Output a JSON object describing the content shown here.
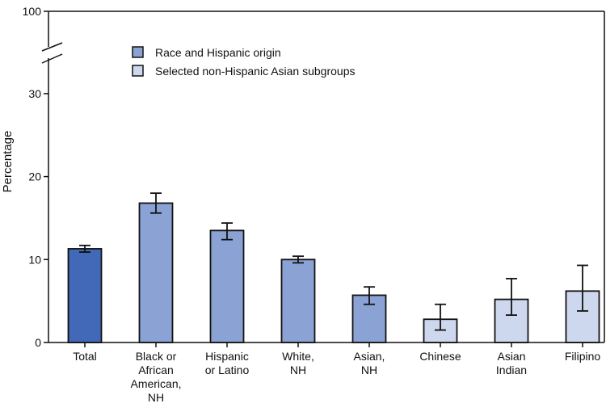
{
  "chart_data": {
    "type": "bar",
    "title": "",
    "xlabel": "",
    "ylabel": "Percentage",
    "ylim": [
      0,
      100
    ],
    "axis_break": [
      30,
      100
    ],
    "y_ticks": [
      0,
      10,
      20,
      30,
      100
    ],
    "grid": false,
    "legend_placement": "top-left",
    "legend": [
      {
        "label": "Race and Hispanic origin",
        "color": "#8aa2d4"
      },
      {
        "label": "Selected non-Hispanic Asian subgroups",
        "color": "#cdd7ee"
      }
    ],
    "categories": [
      [
        "Total"
      ],
      [
        "Black or",
        "African",
        "American,",
        "NH"
      ],
      [
        "Hispanic",
        "or Latino"
      ],
      [
        "White,",
        "NH"
      ],
      [
        "Asian,",
        "NH"
      ],
      [
        "Chinese"
      ],
      [
        "Asian",
        "Indian"
      ],
      [
        "Filipino"
      ]
    ],
    "values": [
      11.3,
      16.8,
      13.5,
      10.0,
      5.7,
      2.8,
      5.2,
      6.2
    ],
    "ci_lower": [
      10.9,
      15.6,
      12.4,
      9.6,
      4.6,
      1.5,
      3.3,
      3.8
    ],
    "ci_upper": [
      11.7,
      18.0,
      14.4,
      10.4,
      6.7,
      4.6,
      7.7,
      9.3
    ],
    "bar_colors": [
      "#4169b8",
      "#8aa2d4",
      "#8aa2d4",
      "#8aa2d4",
      "#8aa2d4",
      "#cdd7ee",
      "#cdd7ee",
      "#cdd7ee"
    ]
  }
}
